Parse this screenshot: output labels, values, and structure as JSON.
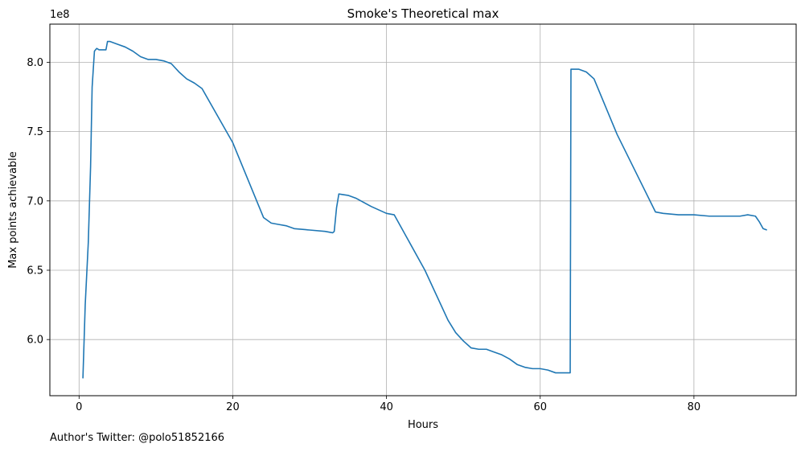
{
  "chart_data": {
    "type": "line",
    "title": "Smoke's Theoretical max",
    "xlabel": "Hours",
    "ylabel": "Max points achievable",
    "y_offset_label": "1e8",
    "xlim": [
      -3.8,
      93.3
    ],
    "ylim": [
      5.595,
      8.275
    ],
    "x_ticks": [
      0,
      20,
      40,
      60,
      80
    ],
    "x_tick_labels": [
      "0",
      "20",
      "40",
      "60",
      "80"
    ],
    "y_ticks": [
      6.0,
      6.5,
      7.0,
      7.5,
      8.0
    ],
    "y_tick_labels": [
      "6.0",
      "6.5",
      "7.0",
      "7.5",
      "8.0"
    ],
    "grid": true,
    "colors": {
      "line": "#1f77b4",
      "grid": "#b0b0b0",
      "axes": "#000000"
    },
    "series": [
      {
        "x": [
          0.5,
          0.8,
          1.2,
          1.5,
          1.7,
          2.0,
          2.3,
          2.6,
          3.0,
          3.5,
          3.7,
          4.0,
          4.5,
          5.0,
          6.0,
          7.0,
          8.0,
          8.5,
          9.0,
          10.0,
          11.0,
          12.0,
          13.0,
          14.0,
          15.0,
          16.0,
          20.0,
          24.0,
          25.0,
          26.0,
          27.0,
          28.0,
          30.0,
          32.0,
          33.0,
          33.2,
          33.5,
          33.8,
          35.0,
          36.0,
          38.0,
          40.0,
          41.0,
          45.0,
          48.0,
          49.0,
          50.0,
          51.0,
          52.0,
          53.0,
          54.0,
          55.0,
          56.0,
          57.0,
          58.0,
          59.0,
          60.0,
          61.0,
          62.0,
          63.0,
          63.9,
          64.0,
          64.3,
          65.0,
          66.0,
          67.0,
          70.0,
          75.0,
          76.0,
          78.0,
          80.0,
          82.0,
          84.0,
          86.0,
          87.0,
          88.0,
          88.5,
          89.0,
          89.5
        ],
        "y": [
          5.72,
          6.25,
          6.7,
          7.25,
          7.82,
          8.08,
          8.1,
          8.09,
          8.09,
          8.09,
          8.15,
          8.15,
          8.14,
          8.13,
          8.11,
          8.08,
          8.04,
          8.03,
          8.02,
          8.02,
          8.01,
          7.99,
          7.93,
          7.88,
          7.85,
          7.81,
          7.42,
          6.88,
          6.84,
          6.83,
          6.82,
          6.8,
          6.79,
          6.78,
          6.77,
          6.78,
          6.95,
          7.05,
          7.04,
          7.02,
          6.96,
          6.91,
          6.9,
          6.5,
          6.14,
          6.05,
          5.99,
          5.94,
          5.93,
          5.93,
          5.91,
          5.89,
          5.86,
          5.82,
          5.8,
          5.79,
          5.79,
          5.78,
          5.76,
          5.76,
          5.76,
          7.95,
          7.95,
          7.95,
          7.93,
          7.88,
          7.48,
          6.92,
          6.91,
          6.9,
          6.9,
          6.89,
          6.89,
          6.89,
          6.9,
          6.89,
          6.85,
          6.8,
          6.79
        ]
      }
    ]
  },
  "footnote": "Author's Twitter: @polo51852166"
}
